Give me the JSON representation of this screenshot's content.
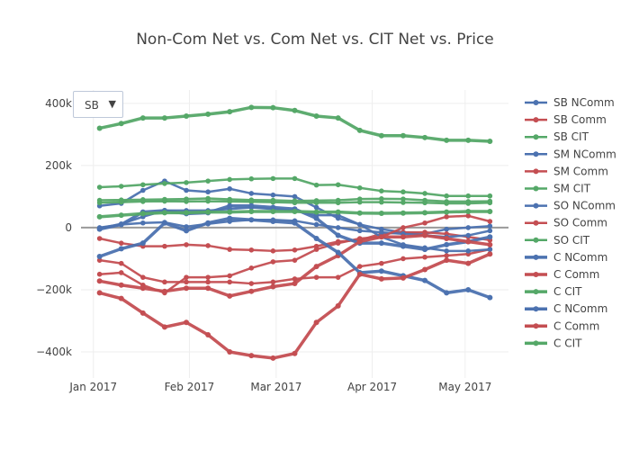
{
  "chart_data": {
    "type": "line",
    "title": "Non-Com Net vs. Com Net vs. CIT Net vs. Price",
    "xlabel": "",
    "ylabel": "",
    "y_unit": "thousands",
    "ylim": [
      -484,
      443
    ],
    "xlim": [
      "2016-12-28",
      "2017-05-15"
    ],
    "grid": true,
    "legend_position": "right",
    "dropdown": {
      "selected": "SB",
      "arrow": "▼"
    },
    "x_ticks": [
      {
        "date": "2017-01-01",
        "label": "Jan 2017"
      },
      {
        "date": "2017-02-01",
        "label": "Feb 2017"
      },
      {
        "date": "2017-03-01",
        "label": "Mar 2017"
      },
      {
        "date": "2017-04-01",
        "label": "Apr 2017"
      },
      {
        "date": "2017-05-01",
        "label": "May 2017"
      }
    ],
    "y_ticks": [
      {
        "value": 400,
        "label": "400k"
      },
      {
        "value": 200,
        "label": "200k"
      },
      {
        "value": 0,
        "label": "0"
      },
      {
        "value": -200,
        "label": "−200k"
      },
      {
        "value": -400,
        "label": "−400k"
      }
    ],
    "x": [
      "2017-01-03",
      "2017-01-10",
      "2017-01-17",
      "2017-01-24",
      "2017-01-31",
      "2017-02-07",
      "2017-02-14",
      "2017-02-21",
      "2017-02-28",
      "2017-03-07",
      "2017-03-14",
      "2017-03-21",
      "2017-03-28",
      "2017-04-04",
      "2017-04-11",
      "2017-04-18",
      "2017-04-25",
      "2017-05-02",
      "2017-05-09"
    ],
    "colors": {
      "ncomm": "#4c72b0",
      "comm": "#c44e52",
      "cit": "#55a868"
    },
    "series": [
      {
        "name": "SB NComm",
        "kind": "ncomm",
        "thick": false,
        "values": [
          70,
          78,
          120,
          150,
          120,
          115,
          125,
          110,
          105,
          100,
          65,
          30,
          10,
          -5,
          -15,
          -20,
          -5,
          0,
          5
        ]
      },
      {
        "name": "SB Comm",
        "kind": "comm",
        "thick": false,
        "values": [
          -35,
          -50,
          -60,
          -60,
          -55,
          -58,
          -70,
          -72,
          -75,
          -72,
          -60,
          -45,
          -40,
          -20,
          -15,
          -15,
          -20,
          -30,
          -40
        ]
      },
      {
        "name": "SB CIT",
        "kind": "cit",
        "thick": false,
        "values": [
          130,
          133,
          138,
          142,
          145,
          150,
          155,
          157,
          158,
          158,
          137,
          138,
          128,
          118,
          115,
          110,
          102,
          102,
          102
        ]
      },
      {
        "name": "SM NComm",
        "kind": "ncomm",
        "thick": false,
        "values": [
          0,
          10,
          15,
          17,
          3,
          12,
          20,
          25,
          25,
          22,
          10,
          0,
          -10,
          -15,
          -20,
          -25,
          -30,
          -25,
          -10
        ]
      },
      {
        "name": "SM Comm",
        "kind": "comm",
        "thick": false,
        "values": [
          -105,
          -115,
          -160,
          -175,
          -175,
          -175,
          -175,
          -180,
          -175,
          -165,
          -160,
          -160,
          -125,
          -115,
          -100,
          -95,
          -90,
          -85,
          -70
        ]
      },
      {
        "name": "SM CIT",
        "kind": "cit",
        "thick": false,
        "values": [
          88,
          89,
          90,
          91,
          92,
          94,
          91,
          89,
          88,
          86,
          87,
          88,
          92,
          93,
          92,
          88,
          84,
          84,
          85
        ]
      },
      {
        "name": "SO NComm",
        "kind": "ncomm",
        "thick": false,
        "values": [
          -2,
          12,
          35,
          55,
          55,
          55,
          60,
          65,
          60,
          55,
          40,
          40,
          10,
          -30,
          -55,
          -65,
          -75,
          -75,
          -70
        ]
      },
      {
        "name": "SO Comm",
        "kind": "comm",
        "thick": false,
        "values": [
          -150,
          -145,
          -185,
          -210,
          -160,
          -160,
          -155,
          -130,
          -110,
          -105,
          -70,
          -50,
          -35,
          -30,
          0,
          15,
          35,
          38,
          20
        ]
      },
      {
        "name": "SO CIT",
        "kind": "cit",
        "thick": false,
        "values": [
          80,
          82,
          84,
          85,
          84,
          85,
          84,
          83,
          82,
          80,
          80,
          80,
          82,
          82,
          81,
          80,
          78,
          78,
          80
        ]
      },
      {
        "name": "C NComm",
        "kind": "ncomm",
        "thick": true,
        "values": [
          -5,
          10,
          50,
          55,
          45,
          48,
          70,
          70,
          65,
          60,
          30,
          -25,
          -50,
          -50,
          -60,
          -70,
          -55,
          -45,
          -30
        ]
      },
      {
        "name": "C Comm",
        "kind": "comm",
        "thick": true,
        "values": [
          -172,
          -185,
          -195,
          -205,
          -195,
          -195,
          -220,
          -205,
          -190,
          -180,
          -125,
          -90,
          -45,
          -30,
          -30,
          -25,
          -35,
          -45,
          -55
        ]
      },
      {
        "name": "C CIT",
        "kind": "cit",
        "thick": true,
        "values": [
          35,
          40,
          45,
          48,
          48,
          50,
          50,
          52,
          52,
          52,
          50,
          50,
          47,
          46,
          47,
          48,
          50,
          52,
          52
        ]
      },
      {
        "name": "C NComm",
        "kind": "ncomm",
        "thick": true,
        "values": [
          -93,
          -68,
          -50,
          15,
          -10,
          15,
          30,
          25,
          20,
          15,
          -35,
          -80,
          -145,
          -140,
          -155,
          -170,
          -210,
          -200,
          -225
        ]
      },
      {
        "name": "C Comm",
        "kind": "comm",
        "thick": true,
        "values": [
          -210,
          -228,
          -275,
          -320,
          -305,
          -345,
          -400,
          -412,
          -420,
          -405,
          -305,
          -252,
          -150,
          -165,
          -162,
          -135,
          -105,
          -115,
          -85
        ]
      },
      {
        "name": "C CIT",
        "kind": "cit",
        "thick": true,
        "values": [
          320,
          335,
          353,
          353,
          359,
          365,
          373,
          387,
          386,
          377,
          359,
          353,
          313,
          296,
          296,
          290,
          281,
          281,
          278
        ]
      }
    ]
  }
}
